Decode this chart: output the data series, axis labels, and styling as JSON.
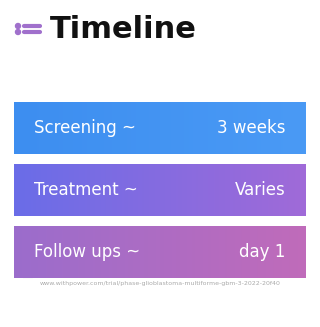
{
  "title": "Timeline",
  "background_color": "#ffffff",
  "rows": [
    {
      "label": "Screening ~",
      "value": "3 weeks",
      "color_left": "#3d8ef0",
      "color_right": "#4a9af5"
    },
    {
      "label": "Treatment ~",
      "value": "Varies",
      "color_left": "#6a6de8",
      "color_right": "#a06ad8"
    },
    {
      "label": "Follow ups ~",
      "value": "day 1",
      "color_left": "#9b6dcc",
      "color_right": "#c06bba"
    }
  ],
  "icon_color": "#a070cc",
  "title_color": "#111111",
  "label_color": "#ffffff",
  "value_color": "#ffffff",
  "footer_logo_color": "#cccccc",
  "footer_text": "www.withpower.com/trial/phase-glioblastoma-multiforme-gbm-3-2022-20f40",
  "footer_text_color": "#aaaaaa",
  "power_text_color": "#bbbbbb"
}
